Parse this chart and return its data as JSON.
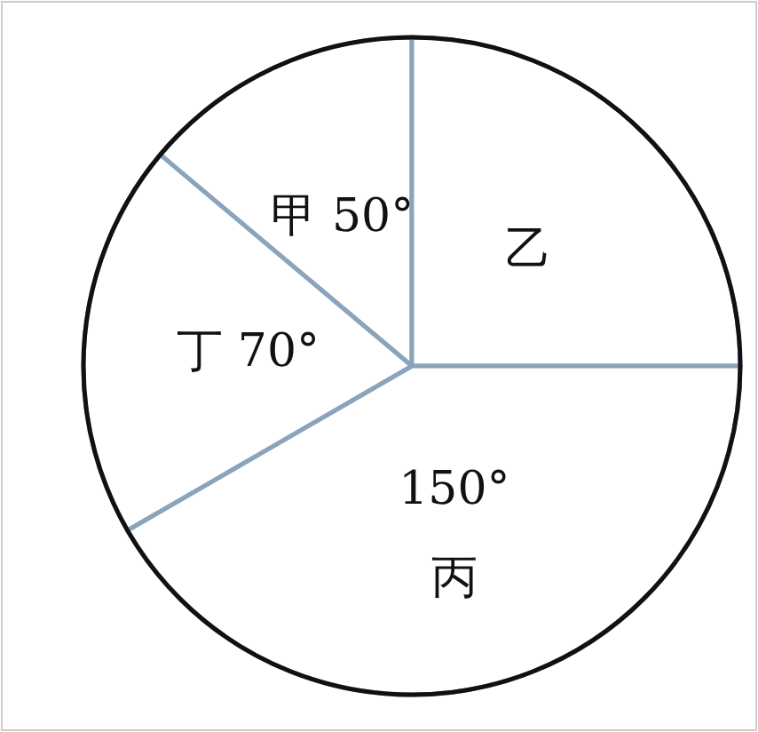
{
  "chart_data": {
    "type": "pie",
    "categories": [
      "甲",
      "乙",
      "丙",
      "丁"
    ],
    "values": [
      50,
      90,
      150,
      70
    ],
    "value_labels": [
      "50°",
      null,
      "150°",
      "70°"
    ],
    "colors": [
      "#ffffff",
      "#ffffff",
      "#ffffff",
      "#ffffff"
    ]
  }
}
